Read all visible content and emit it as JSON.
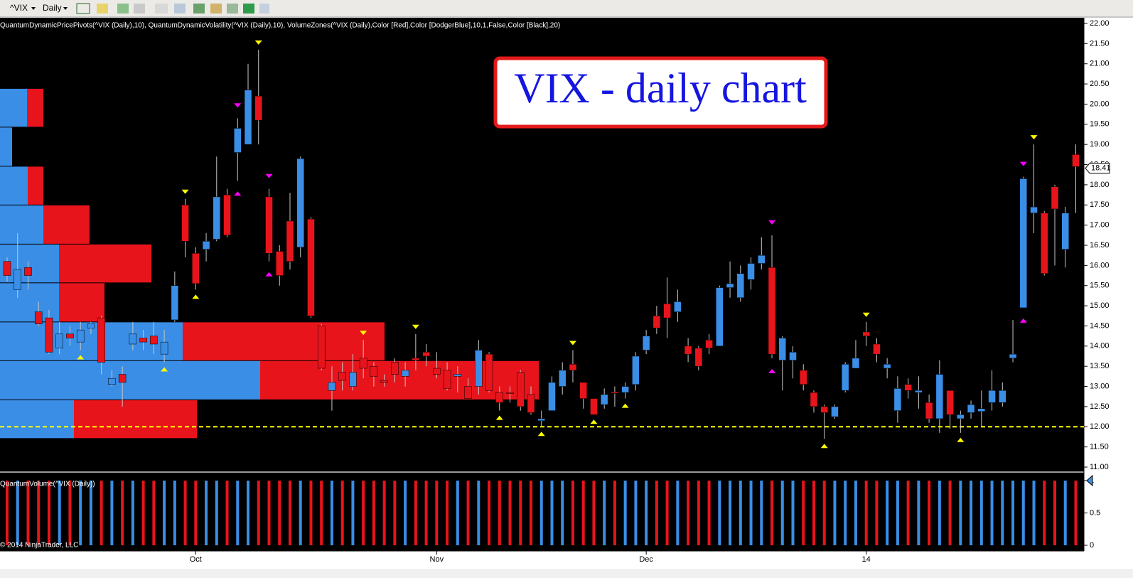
{
  "toolbar": {
    "symbol": "^VIX",
    "interval": "Daily"
  },
  "chart_data": {
    "type": "candlestick",
    "title": "VIX - daily chart",
    "indicators_label": "QuantumDynamicPricePivots(^VIX (Daily),10), QuantumDynamicVolatility(^VIX (Daily),10), VolumeZones(^VIX (Daily),Color [Red],Color [DodgerBlue],10,1,False,Color [Black],20)",
    "volume_label": "QuantumVolume(^VIX (Daily))",
    "copyright": "© 2014 NinjaTrader, LLC",
    "up_color": "#3a8ee6",
    "down_color": "#e8141b",
    "categories": [
      null,
      null,
      null,
      null,
      null,
      null,
      null,
      null,
      null,
      null,
      null,
      null,
      null,
      null,
      null,
      null,
      null,
      null,
      "Oct",
      null,
      null,
      null,
      null,
      null,
      null,
      null,
      null,
      null,
      null,
      null,
      null,
      null,
      null,
      null,
      null,
      null,
      null,
      null,
      null,
      null,
      null,
      "Nov",
      null,
      null,
      null,
      null,
      null,
      null,
      null,
      null,
      null,
      null,
      null,
      null,
      null,
      null,
      null,
      null,
      null,
      null,
      null,
      "Dec",
      null,
      null,
      null,
      null,
      null,
      null,
      null,
      null,
      null,
      null,
      null,
      null,
      null,
      null,
      null,
      null,
      null,
      null,
      null,
      null,
      "14",
      null,
      null,
      null,
      null,
      null,
      null,
      null,
      null,
      null,
      null,
      null,
      null,
      null,
      null,
      null,
      null,
      null,
      null,
      null,
      null
    ],
    "open": [
      16.1,
      15.4,
      15.95,
      14.85,
      14.7,
      13.95,
      14.3,
      14.1,
      14.45,
      14.7,
      13.05,
      13.3,
      14.05,
      14.2,
      14.25,
      13.8,
      14.65,
      17.5,
      16.3,
      16.4,
      16.65,
      17.75,
      18.8,
      19.0,
      20.2,
      17.7,
      16.35,
      17.1,
      16.45,
      17.15,
      14.5,
      12.9,
      13.35,
      13.0,
      13.7,
      13.5,
      13.15,
      13.6,
      13.25,
      13.7,
      13.85,
      13.45,
      13.4,
      13.25,
      13.0,
      13.0,
      13.8,
      12.85,
      12.85,
      13.35,
      12.8,
      12.15,
      12.4,
      13.0,
      13.55,
      13.1,
      12.7,
      12.55,
      12.86,
      12.85,
      13.05,
      13.9,
      14.75,
      15.05,
      14.85,
      14.0,
      13.95,
      14.15,
      14.0,
      15.45,
      15.2,
      15.65,
      16.05,
      15.95,
      13.65,
      13.65,
      13.4,
      12.85,
      12.5,
      12.25,
      12.9,
      13.45,
      14.35,
      14.05,
      13.45,
      12.4,
      13.05,
      12.85,
      12.6,
      12.2,
      12.9,
      12.2,
      12.35,
      12.38,
      12.6,
      12.6,
      13.7,
      14.95,
      17.3,
      17.3,
      17.95,
      16.4,
      18.75
    ],
    "high": [
      16.2,
      16.8,
      16.1,
      15.1,
      14.9,
      14.6,
      14.5,
      14.6,
      14.6,
      14.75,
      13.4,
      13.5,
      14.6,
      14.4,
      14.6,
      14.4,
      15.85,
      17.65,
      16.45,
      16.8,
      18.7,
      17.9,
      19.65,
      21.0,
      21.35,
      17.9,
      16.5,
      17.8,
      18.7,
      17.2,
      14.55,
      13.5,
      13.6,
      13.8,
      14.15,
      13.6,
      13.3,
      13.7,
      13.6,
      14.3,
      14.05,
      13.85,
      13.6,
      13.5,
      13.2,
      14.15,
      13.85,
      13.0,
      13.0,
      13.4,
      13.0,
      12.4,
      13.25,
      13.6,
      13.9,
      13.1,
      12.7,
      12.95,
      13.0,
      13.1,
      13.85,
      14.4,
      15.0,
      15.7,
      15.4,
      14.2,
      14.0,
      14.3,
      15.5,
      16.1,
      16.0,
      16.2,
      16.7,
      16.75,
      14.25,
      14.0,
      13.55,
      12.9,
      12.55,
      12.55,
      13.6,
      14.15,
      14.6,
      14.2,
      13.7,
      13.25,
      13.2,
      13.25,
      12.8,
      13.65,
      12.9,
      12.4,
      12.65,
      12.9,
      13.4,
      13.1,
      14.65,
      18.2,
      19.0,
      17.35,
      18.0,
      17.45,
      19.0
    ],
    "low": [
      15.6,
      15.2,
      15.4,
      14.5,
      13.8,
      13.8,
      14.0,
      13.9,
      14.3,
      13.3,
      13.0,
      12.5,
      13.9,
      13.9,
      13.8,
      13.6,
      14.6,
      16.2,
      15.4,
      16.1,
      16.6,
      16.7,
      18.1,
      19.0,
      19.0,
      16.1,
      15.5,
      15.9,
      16.2,
      14.7,
      13.4,
      12.4,
      12.9,
      12.9,
      13.2,
      13.0,
      13.0,
      13.1,
      13.0,
      13.4,
      13.5,
      13.2,
      12.9,
      12.85,
      12.7,
      12.8,
      12.85,
      12.4,
      12.6,
      12.4,
      12.3,
      12.0,
      12.4,
      12.8,
      13.1,
      12.45,
      12.3,
      12.45,
      12.5,
      12.7,
      12.9,
      13.8,
      14.3,
      14.2,
      14.6,
      13.6,
      13.4,
      13.8,
      14.0,
      15.2,
      15.1,
      15.4,
      15.9,
      13.7,
      12.9,
      13.2,
      12.9,
      12.35,
      11.7,
      12.2,
      12.85,
      13.5,
      14.0,
      13.6,
      13.2,
      12.1,
      12.7,
      12.45,
      12.1,
      11.85,
      11.95,
      11.85,
      12.2,
      12.0,
      12.4,
      12.5,
      13.6,
      14.95,
      16.8,
      15.75,
      16.0,
      15.95,
      17.3
    ],
    "close": [
      15.75,
      15.9,
      15.75,
      14.55,
      13.85,
      14.3,
      14.2,
      14.4,
      14.55,
      13.6,
      13.2,
      13.1,
      14.3,
      14.1,
      14.05,
      14.1,
      15.5,
      16.6,
      15.55,
      16.6,
      17.7,
      16.75,
      19.4,
      20.35,
      19.6,
      16.3,
      15.75,
      16.1,
      18.65,
      14.75,
      13.45,
      13.1,
      13.15,
      13.35,
      13.45,
      13.25,
      13.1,
      13.3,
      13.4,
      13.65,
      13.75,
      13.3,
      12.95,
      13.3,
      12.7,
      13.9,
      12.9,
      12.6,
      12.83,
      12.5,
      12.35,
      12.2,
      13.1,
      13.4,
      13.4,
      12.7,
      12.3,
      12.8,
      12.83,
      13.0,
      13.75,
      14.25,
      14.45,
      14.7,
      15.1,
      13.8,
      13.5,
      13.95,
      15.45,
      15.55,
      15.8,
      16.05,
      16.25,
      13.8,
      14.2,
      13.85,
      13.05,
      12.5,
      12.35,
      12.5,
      13.55,
      13.7,
      14.25,
      13.8,
      13.55,
      12.95,
      12.9,
      12.9,
      12.2,
      13.3,
      12.3,
      12.3,
      12.55,
      12.45,
      12.9,
      12.9,
      13.8,
      18.15,
      17.45,
      15.8,
      17.4,
      17.3,
      18.45
    ],
    "volume": [
      1,
      1,
      1,
      1,
      1,
      1,
      1,
      1,
      1,
      1,
      1,
      1,
      1,
      1,
      1,
      1,
      1,
      1,
      1,
      1,
      1,
      1,
      1,
      1,
      1,
      1,
      1,
      1,
      1,
      1,
      1,
      1,
      1,
      1,
      1,
      1,
      1,
      1,
      1,
      1,
      1,
      1,
      1,
      1,
      1,
      1,
      1,
      1,
      1,
      1,
      1,
      1,
      1,
      1,
      1,
      1,
      1,
      1,
      1,
      1,
      1,
      1,
      1,
      1,
      1,
      1,
      1,
      1,
      1,
      1,
      1,
      1,
      1,
      1,
      1,
      1,
      1,
      1,
      1,
      1,
      1,
      1,
      1,
      1,
      1,
      1,
      1,
      1,
      1,
      1,
      1,
      1,
      1,
      1,
      1,
      1,
      1,
      1,
      1,
      1,
      1,
      1,
      1
    ],
    "ylim": [
      11,
      22
    ],
    "yticks": [
      {
        "value": 11,
        "label": "11.00"
      },
      {
        "value": 11.5,
        "label": "11.50"
      },
      {
        "value": 12,
        "label": "12.00"
      },
      {
        "value": 12.5,
        "label": "12.50"
      },
      {
        "value": 13,
        "label": "13.00"
      },
      {
        "value": 13.5,
        "label": "13.50"
      },
      {
        "value": 14,
        "label": "14.00"
      },
      {
        "value": 14.5,
        "label": "14.50"
      },
      {
        "value": 15,
        "label": "15.00"
      },
      {
        "value": 15.5,
        "label": "15.50"
      },
      {
        "value": 16,
        "label": "16.00"
      },
      {
        "value": 16.5,
        "label": "16.50"
      },
      {
        "value": 17,
        "label": "17.00"
      },
      {
        "value": 17.5,
        "label": "17.50"
      },
      {
        "value": 18,
        "label": "18.00"
      },
      {
        "value": 18.5,
        "label": "18.50"
      },
      {
        "value": 19,
        "label": "19.00"
      },
      {
        "value": 19.5,
        "label": "19.50"
      },
      {
        "value": 20,
        "label": "20.00"
      },
      {
        "value": 20.5,
        "label": "20.50"
      },
      {
        "value": 21,
        "label": "21.00"
      },
      {
        "value": 21.5,
        "label": "21.50"
      },
      {
        "value": 22,
        "label": "22.00"
      }
    ],
    "y2lim": [
      0,
      1
    ],
    "y2ticks": [
      0,
      0.5,
      1
    ],
    "last_price": 18.41,
    "support_level": 12.0,
    "support_color": "#ffff00",
    "volume_zones": {
      "edges": [
        20.38,
        19.42,
        18.45,
        17.49,
        16.52,
        15.56,
        14.59,
        13.63,
        12.66,
        11.7
      ],
      "up": [
        38,
        17,
        39,
        61,
        83,
        83,
        257,
        366,
        104
      ],
      "down": [
        23,
        0,
        22,
        65,
        130,
        64,
        284,
        392,
        173
      ]
    },
    "pivots": [
      {
        "color": "#ffff00",
        "highs": [
          17,
          24,
          34,
          39,
          54,
          82,
          98
        ],
        "lows": [
          7,
          15,
          18,
          47,
          51,
          56,
          59,
          78,
          91
        ]
      },
      {
        "color": "#ff00ff",
        "highs": [
          22,
          25,
          73,
          97
        ],
        "lows": [
          22,
          25,
          73,
          97
        ]
      }
    ]
  }
}
